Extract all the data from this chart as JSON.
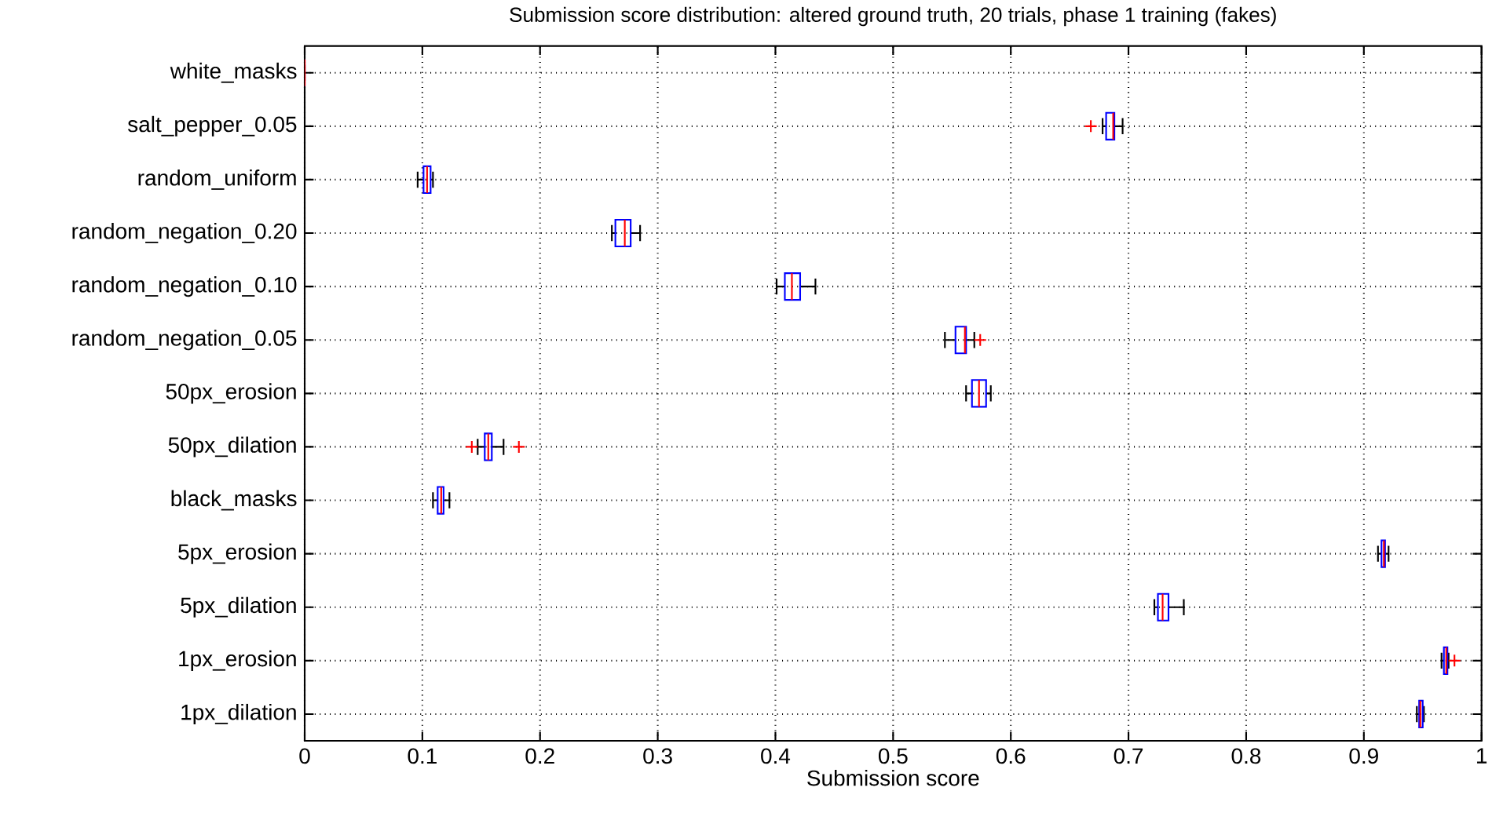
{
  "chart_data": {
    "type": "box",
    "orientation": "horizontal",
    "title": "Submission score distribution: altered ground truth, 20 trials, phase 1 training (fakes)",
    "xlabel": "Submission score",
    "categories": [
      "white_masks",
      "salt_pepper_0.05",
      "random_uniform",
      "random_negation_0.20",
      "random_negation_0.10",
      "random_negation_0.05",
      "50px_erosion",
      "50px_dilation",
      "black_masks",
      "5px_erosion",
      "5px_dilation",
      "1px_erosion",
      "1px_dilation"
    ],
    "series": [
      {
        "color": "#0000ff",
        "boxes": [
          {
            "low": 0,
            "q1": 0,
            "median": 0,
            "q3": 0,
            "high": 0
          },
          {
            "low": 0.678,
            "q1": 0.681,
            "median": 0.687,
            "q3": 0.688,
            "high": 0.695,
            "outliers": [
              0.668
            ]
          },
          {
            "low": 0.096,
            "q1": 0.101,
            "median": 0.104,
            "q3": 0.107,
            "high": 0.109
          },
          {
            "low": 0.261,
            "q1": 0.264,
            "median": 0.272,
            "q3": 0.277,
            "high": 0.285
          },
          {
            "low": 0.401,
            "q1": 0.408,
            "median": 0.414,
            "q3": 0.421,
            "high": 0.434
          },
          {
            "low": 0.544,
            "q1": 0.553,
            "median": 0.561,
            "q3": 0.562,
            "high": 0.569,
            "outliers": [
              0.574
            ]
          },
          {
            "low": 0.562,
            "q1": 0.567,
            "median": 0.573,
            "q3": 0.579,
            "high": 0.583
          },
          {
            "low": 0.147,
            "q1": 0.153,
            "median": 0.156,
            "q3": 0.159,
            "high": 0.169,
            "outliers": [
              0.142,
              0.182
            ]
          },
          {
            "low": 0.109,
            "q1": 0.113,
            "median": 0.116,
            "q3": 0.118,
            "high": 0.123
          },
          {
            "low": 0.912,
            "q1": 0.915,
            "median": 0.917,
            "q3": 0.918,
            "high": 0.921
          },
          {
            "low": 0.722,
            "q1": 0.725,
            "median": 0.729,
            "q3": 0.734,
            "high": 0.747
          },
          {
            "low": 0.966,
            "q1": 0.968,
            "median": 0.97,
            "q3": 0.971,
            "high": 0.972,
            "outliers": [
              0.977
            ]
          },
          {
            "low": 0.945,
            "q1": 0.947,
            "median": 0.948,
            "q3": 0.95,
            "high": 0.951
          }
        ]
      }
    ],
    "xlim": [
      0,
      1
    ],
    "xticks": [
      0,
      0.1,
      0.2,
      0.3,
      0.4,
      0.5,
      0.6,
      0.7,
      0.8,
      0.9,
      1
    ],
    "grid": true
  }
}
